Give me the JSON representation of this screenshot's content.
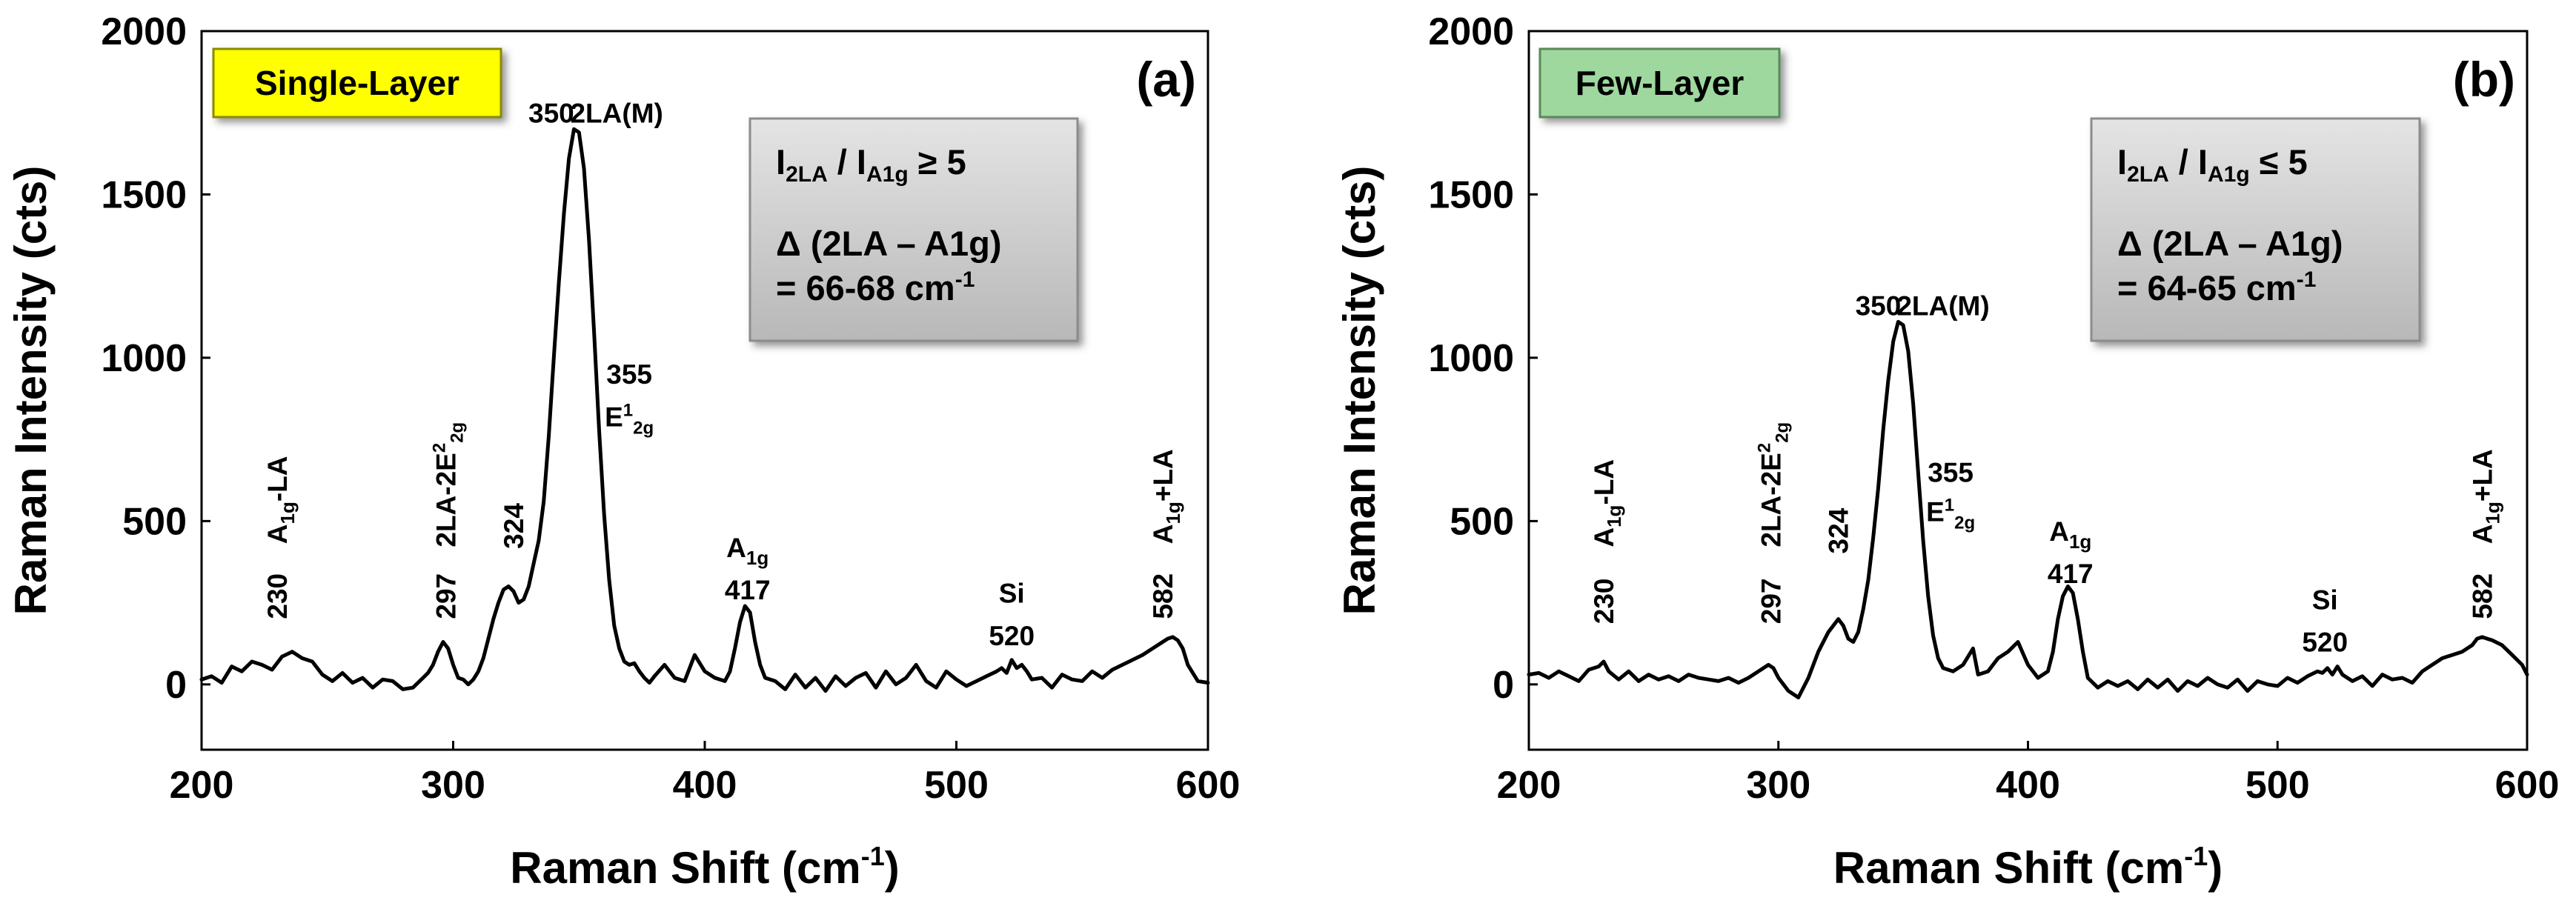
{
  "chart_data": [
    {
      "id": "panel-a",
      "type": "line",
      "panel_label": "(a)",
      "title": "Single-Layer",
      "xlabel": "Raman Shift (cm-1)",
      "xlabel_main": "Raman Shift (cm",
      "xlabel_sup": "-1",
      "xlabel_end": ")",
      "ylabel": "Raman Intensity (cts)",
      "xlim": [
        200,
        600
      ],
      "ylim": [
        -200,
        2000
      ],
      "xticks": [
        200,
        300,
        400,
        500,
        600
      ],
      "yticks": [
        0,
        500,
        1000,
        1500,
        2000
      ],
      "tag": {
        "text": "Single-Layer",
        "color": "#ffff00",
        "border": "#8a8a00"
      },
      "info_box": {
        "ratio_line": "I2LA / IA1g ≥ 5",
        "ratio_sym": "≥ 5",
        "delta_line": "Δ (2LA – A1g)",
        "value_line": "= 66-68 cm-1",
        "value_main": "= 66-68 cm",
        "value_sup": "-1"
      },
      "annotations": [
        {
          "text": "A1g-LA",
          "base": "A",
          "sub": "1g",
          "tail": "-LA",
          "x": 230,
          "y": 430,
          "vertical": true
        },
        {
          "text": "230",
          "x": 230,
          "y": 200,
          "vertical": true
        },
        {
          "text": "2LA-2E22g",
          "x": 297,
          "y": 420,
          "vertical": true,
          "kind": "2le"
        },
        {
          "text": "297",
          "x": 297,
          "y": 200,
          "vertical": true
        },
        {
          "text": "324",
          "x": 324,
          "y": 415,
          "vertical": true
        },
        {
          "text": "350",
          "x": 339,
          "y": 1720
        },
        {
          "text": "2LA(M)",
          "x": 365,
          "y": 1720
        },
        {
          "text": "355",
          "x": 370,
          "y": 920
        },
        {
          "text": "E12g",
          "x": 370,
          "y": 790,
          "kind": "e12g"
        },
        {
          "text": "A1g",
          "base": "A",
          "sub": "1g",
          "x": 417,
          "y": 390
        },
        {
          "text": "417",
          "x": 417,
          "y": 260
        },
        {
          "text": "Si",
          "x": 522,
          "y": 250
        },
        {
          "text": "520",
          "x": 522,
          "y": 120
        },
        {
          "text": "582",
          "x": 582,
          "y": 200,
          "vertical": true
        },
        {
          "text": "A1g+LA",
          "base": "A",
          "sub": "1g",
          "tail": "+LA",
          "x": 582,
          "y": 430,
          "vertical": true
        }
      ],
      "series": [
        {
          "name": "Single-Layer spectrum",
          "x": [
            200,
            204,
            208,
            212,
            216,
            220,
            224,
            228,
            232,
            236,
            240,
            244,
            248,
            252,
            256,
            260,
            264,
            268,
            272,
            276,
            280,
            284,
            288,
            290,
            292,
            294,
            296,
            298,
            300,
            302,
            304,
            306,
            308,
            310,
            312,
            314,
            316,
            318,
            320,
            322,
            324,
            326,
            328,
            330,
            332,
            334,
            336,
            338,
            340,
            342,
            344,
            346,
            348,
            350,
            352,
            354,
            356,
            358,
            360,
            362,
            364,
            366,
            368,
            370,
            372,
            374,
            376,
            378,
            380,
            384,
            388,
            392,
            396,
            400,
            404,
            408,
            410,
            412,
            414,
            416,
            418,
            420,
            422,
            424,
            428,
            432,
            436,
            440,
            444,
            448,
            452,
            456,
            460,
            464,
            468,
            472,
            476,
            480,
            484,
            488,
            492,
            496,
            500,
            504,
            508,
            512,
            516,
            518,
            520,
            522,
            524,
            526,
            528,
            530,
            534,
            538,
            542,
            546,
            550,
            554,
            558,
            562,
            566,
            570,
            574,
            578,
            582,
            584,
            586,
            588,
            590,
            592,
            596,
            600
          ],
          "y": [
            15,
            25,
            5,
            55,
            40,
            70,
            60,
            45,
            85,
            100,
            80,
            70,
            30,
            10,
            35,
            5,
            20,
            -10,
            15,
            10,
            -15,
            -10,
            20,
            35,
            60,
            100,
            130,
            110,
            60,
            20,
            15,
            0,
            15,
            40,
            80,
            140,
            200,
            250,
            290,
            300,
            285,
            250,
            260,
            300,
            370,
            440,
            560,
            760,
            1000,
            1230,
            1440,
            1610,
            1700,
            1690,
            1580,
            1360,
            1080,
            780,
            520,
            320,
            180,
            110,
            70,
            60,
            65,
            40,
            20,
            5,
            25,
            60,
            20,
            10,
            90,
            40,
            20,
            10,
            40,
            110,
            190,
            240,
            220,
            130,
            60,
            20,
            10,
            -15,
            30,
            -10,
            20,
            -20,
            25,
            -5,
            20,
            35,
            -10,
            40,
            0,
            20,
            60,
            10,
            -10,
            40,
            15,
            -5,
            10,
            25,
            40,
            50,
            35,
            75,
            50,
            60,
            40,
            15,
            20,
            -10,
            30,
            15,
            10,
            40,
            20,
            45,
            60,
            75,
            90,
            110,
            130,
            140,
            145,
            135,
            110,
            60,
            10,
            5
          ]
        }
      ]
    },
    {
      "id": "panel-b",
      "type": "line",
      "panel_label": "(b)",
      "title": "Few-Layer",
      "xlabel": "Raman Shift (cm-1)",
      "xlabel_main": "Raman Shift (cm",
      "xlabel_sup": "-1",
      "xlabel_end": ")",
      "ylabel": "Raman Intensity (cts)",
      "xlim": [
        200,
        600
      ],
      "ylim": [
        -200,
        2000
      ],
      "xticks": [
        200,
        300,
        400,
        500,
        600
      ],
      "yticks": [
        0,
        500,
        1000,
        1500,
        2000
      ],
      "tag": {
        "text": "Few-Layer",
        "color": "#9fd89f",
        "border": "#5a8a5a"
      },
      "info_box": {
        "ratio_line": "I2LA / IA1g ≤ 5",
        "ratio_sym": "≤ 5",
        "delta_line": "Δ (2LA – A1g)",
        "value_line": "= 64-65 cm-1",
        "value_main": "= 64-65 cm",
        "value_sup": "-1"
      },
      "annotations": [
        {
          "text": "A1g-LA",
          "base": "A",
          "sub": "1g",
          "tail": "-LA",
          "x": 230,
          "y": 420,
          "vertical": true
        },
        {
          "text": "230",
          "x": 230,
          "y": 185,
          "vertical": true
        },
        {
          "text": "2LA-2E22g",
          "x": 297,
          "y": 420,
          "vertical": true,
          "kind": "2le"
        },
        {
          "text": "297",
          "x": 297,
          "y": 185,
          "vertical": true
        },
        {
          "text": "324",
          "x": 324,
          "y": 400,
          "vertical": true
        },
        {
          "text": "350",
          "x": 340,
          "y": 1130
        },
        {
          "text": "2LA(M)",
          "x": 366,
          "y": 1130
        },
        {
          "text": "355",
          "x": 369,
          "y": 620
        },
        {
          "text": "E12g",
          "x": 369,
          "y": 500,
          "kind": "e12g"
        },
        {
          "text": "A1g",
          "base": "A",
          "sub": "1g",
          "x": 417,
          "y": 440
        },
        {
          "text": "417",
          "x": 417,
          "y": 310
        },
        {
          "text": "Si",
          "x": 519,
          "y": 230
        },
        {
          "text": "520",
          "x": 519,
          "y": 100
        },
        {
          "text": "582",
          "x": 582,
          "y": 200,
          "vertical": true
        },
        {
          "text": "A1g+LA",
          "base": "A",
          "sub": "1g",
          "tail": "+LA",
          "x": 582,
          "y": 430,
          "vertical": true
        }
      ],
      "series": [
        {
          "name": "Few-Layer spectrum",
          "x": [
            200,
            204,
            208,
            212,
            216,
            220,
            224,
            228,
            230,
            232,
            236,
            240,
            244,
            248,
            252,
            256,
            260,
            264,
            268,
            272,
            276,
            280,
            284,
            288,
            292,
            296,
            298,
            300,
            304,
            308,
            312,
            316,
            320,
            324,
            326,
            328,
            330,
            332,
            334,
            336,
            338,
            340,
            342,
            344,
            346,
            348,
            350,
            352,
            354,
            356,
            358,
            360,
            362,
            364,
            366,
            370,
            374,
            378,
            380,
            384,
            388,
            392,
            396,
            400,
            404,
            408,
            410,
            412,
            414,
            416,
            418,
            420,
            422,
            424,
            428,
            432,
            436,
            440,
            444,
            448,
            452,
            456,
            460,
            464,
            468,
            472,
            476,
            480,
            484,
            488,
            492,
            496,
            500,
            504,
            508,
            512,
            516,
            518,
            520,
            522,
            524,
            526,
            528,
            530,
            534,
            538,
            542,
            546,
            550,
            554,
            558,
            562,
            566,
            570,
            574,
            578,
            580,
            582,
            584,
            586,
            590,
            594,
            598,
            600
          ],
          "y": [
            30,
            35,
            20,
            40,
            25,
            10,
            45,
            55,
            70,
            40,
            15,
            40,
            10,
            30,
            15,
            25,
            10,
            30,
            20,
            15,
            10,
            20,
            5,
            20,
            40,
            60,
            50,
            20,
            -20,
            -40,
            20,
            100,
            160,
            200,
            180,
            140,
            130,
            160,
            230,
            320,
            450,
            600,
            780,
            930,
            1050,
            1110,
            1100,
            1020,
            860,
            650,
            440,
            270,
            150,
            80,
            50,
            40,
            60,
            110,
            30,
            40,
            80,
            100,
            130,
            60,
            20,
            40,
            100,
            200,
            270,
            300,
            280,
            200,
            100,
            20,
            -10,
            10,
            -5,
            10,
            -15,
            15,
            -10,
            15,
            -20,
            10,
            -5,
            20,
            0,
            -10,
            15,
            -20,
            10,
            0,
            -5,
            20,
            5,
            25,
            40,
            35,
            50,
            30,
            55,
            30,
            20,
            10,
            25,
            -5,
            30,
            15,
            20,
            5,
            40,
            60,
            80,
            90,
            100,
            120,
            140,
            145,
            140,
            135,
            120,
            90,
            60,
            30
          ]
        }
      ]
    }
  ]
}
